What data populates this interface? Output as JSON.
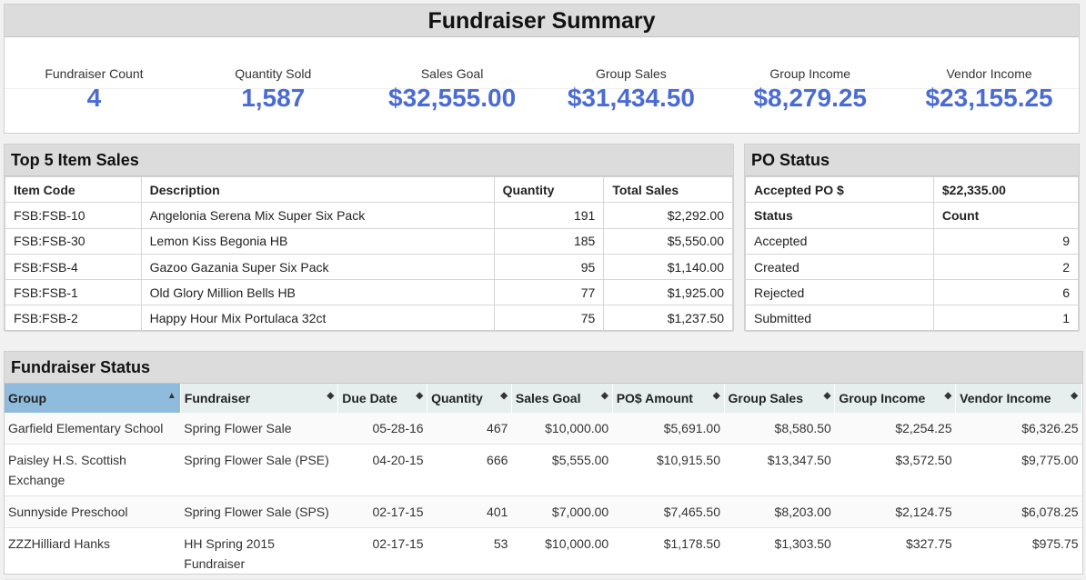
{
  "summary": {
    "title": "Fundraiser Summary",
    "stats": [
      {
        "label": "Fundraiser Count",
        "value": "4"
      },
      {
        "label": "Quantity Sold",
        "value": "1,587"
      },
      {
        "label": "Sales Goal",
        "value": "$32,555.00"
      },
      {
        "label": "Group Sales",
        "value": "$31,434.50"
      },
      {
        "label": "Group Income",
        "value": "$8,279.25"
      },
      {
        "label": "Vendor Income",
        "value": "$23,155.25"
      }
    ]
  },
  "top5": {
    "title": "Top 5 Item Sales",
    "columns": [
      "Item Code",
      "Description",
      "Quantity",
      "Total Sales"
    ],
    "rows": [
      [
        "FSB:FSB-10",
        "Angelonia Serena Mix Super Six Pack",
        "191",
        "$2,292.00"
      ],
      [
        "FSB:FSB-30",
        "Lemon Kiss Begonia HB",
        "185",
        "$5,550.00"
      ],
      [
        "FSB:FSB-4",
        "Gazoo Gazania Super Six Pack",
        "95",
        "$1,140.00"
      ],
      [
        "FSB:FSB-1",
        "Old Glory Million Bells HB",
        "77",
        "$1,925.00"
      ],
      [
        "FSB:FSB-2",
        "Happy Hour Mix Portulaca 32ct",
        "75",
        "$1,237.50"
      ]
    ]
  },
  "po": {
    "title": "PO Status",
    "accepted_label": "Accepted PO $",
    "accepted_value": "$22,335.00",
    "status_header": "Status",
    "count_header": "Count",
    "rows": [
      [
        "Accepted",
        "9"
      ],
      [
        "Created",
        "2"
      ],
      [
        "Rejected",
        "6"
      ],
      [
        "Submitted",
        "1"
      ]
    ]
  },
  "status": {
    "title": "Fundraiser Status",
    "columns": [
      "Group",
      "Fundraiser",
      "Due Date",
      "Quantity",
      "Sales Goal",
      "PO$ Amount",
      "Group Sales",
      "Group Income",
      "Vendor Income"
    ],
    "sort_icons": {
      "sorted": "▲",
      "unsorted": "◆"
    },
    "rows": [
      [
        "Garfield Elementary School",
        "Spring Flower Sale",
        "05-28-16",
        "467",
        "$10,000.00",
        "$5,691.00",
        "$8,580.50",
        "$2,254.25",
        "$6,326.25"
      ],
      [
        "Paisley H.S. Scottish Exchange",
        "Spring Flower Sale (PSE)",
        "04-20-15",
        "666",
        "$5,555.00",
        "$10,915.50",
        "$13,347.50",
        "$3,572.50",
        "$9,775.00"
      ],
      [
        "Sunnyside Preschool",
        "Spring Flower Sale (SPS)",
        "02-17-15",
        "401",
        "$7,000.00",
        "$7,465.50",
        "$8,203.00",
        "$2,124.75",
        "$6,078.25"
      ],
      [
        "ZZZHilliard Hanks",
        "HH Spring 2015 Fundraiser",
        "02-17-15",
        "53",
        "$10,000.00",
        "$1,178.50",
        "$1,303.50",
        "$327.75",
        "$975.75"
      ]
    ]
  },
  "colors": {
    "accent": "#4a6bd6",
    "sorted_header": "#8fbcdc",
    "header_bg": "#e6eeee"
  }
}
